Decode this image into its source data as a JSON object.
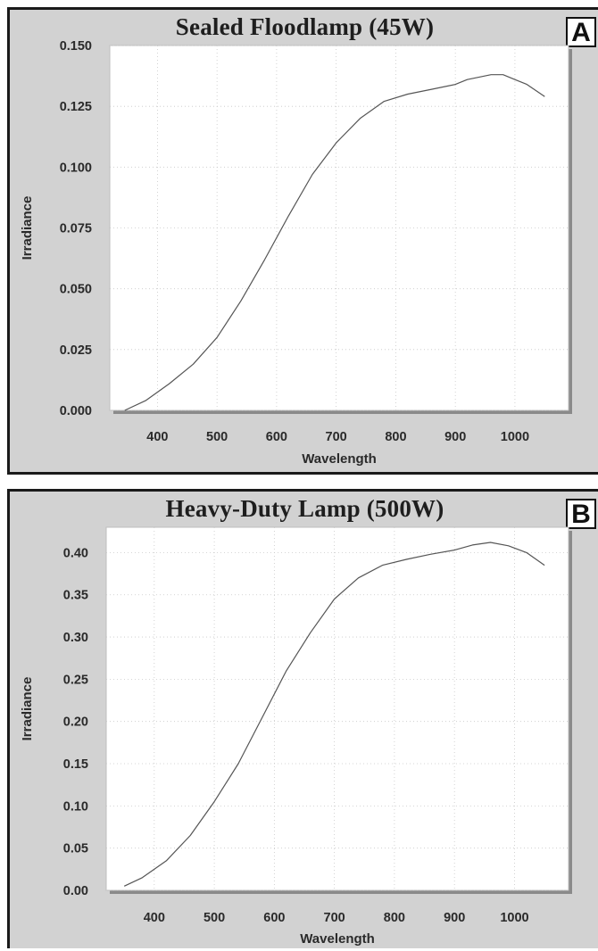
{
  "chart_data": [
    {
      "type": "line",
      "title": "Sealed Floodlamp (45W)",
      "panel_label": "A",
      "xlabel": "Wavelength",
      "ylabel": "Irradiance",
      "xlim": [
        320,
        1090
      ],
      "ylim": [
        0,
        0.15
      ],
      "xticks": [
        400,
        500,
        600,
        700,
        800,
        900,
        1000
      ],
      "yticks": [
        0.0,
        0.025,
        0.05,
        0.075,
        0.1,
        0.125,
        0.15
      ],
      "ytick_decimals": 3,
      "grid": "dotted",
      "series": [
        {
          "x": [
            345,
            380,
            420,
            460,
            500,
            540,
            580,
            620,
            660,
            700,
            740,
            780,
            820,
            860,
            900,
            920,
            940,
            960,
            980,
            1000,
            1020,
            1050
          ],
          "y": [
            0.0,
            0.004,
            0.011,
            0.019,
            0.03,
            0.045,
            0.062,
            0.08,
            0.097,
            0.11,
            0.12,
            0.127,
            0.13,
            0.132,
            0.134,
            0.136,
            0.137,
            0.138,
            0.138,
            0.136,
            0.134,
            0.129
          ]
        }
      ]
    },
    {
      "type": "line",
      "title": "Heavy-Duty Lamp (500W)",
      "panel_label": "B",
      "xlabel": "Wavelength",
      "ylabel": "Irradiance",
      "xlim": [
        320,
        1090
      ],
      "ylim": [
        0,
        0.43
      ],
      "xticks": [
        400,
        500,
        600,
        700,
        800,
        900,
        1000
      ],
      "yticks": [
        0.0,
        0.05,
        0.1,
        0.15,
        0.2,
        0.25,
        0.3,
        0.35,
        0.4
      ],
      "ytick_decimals": 2,
      "grid": "dotted",
      "series": [
        {
          "x": [
            350,
            380,
            420,
            460,
            500,
            540,
            580,
            620,
            660,
            700,
            740,
            780,
            820,
            860,
            900,
            930,
            960,
            990,
            1020,
            1050
          ],
          "y": [
            0.005,
            0.015,
            0.035,
            0.065,
            0.105,
            0.15,
            0.205,
            0.26,
            0.305,
            0.345,
            0.37,
            0.385,
            0.392,
            0.398,
            0.403,
            0.409,
            0.412,
            0.408,
            0.4,
            0.385
          ]
        }
      ]
    }
  ]
}
